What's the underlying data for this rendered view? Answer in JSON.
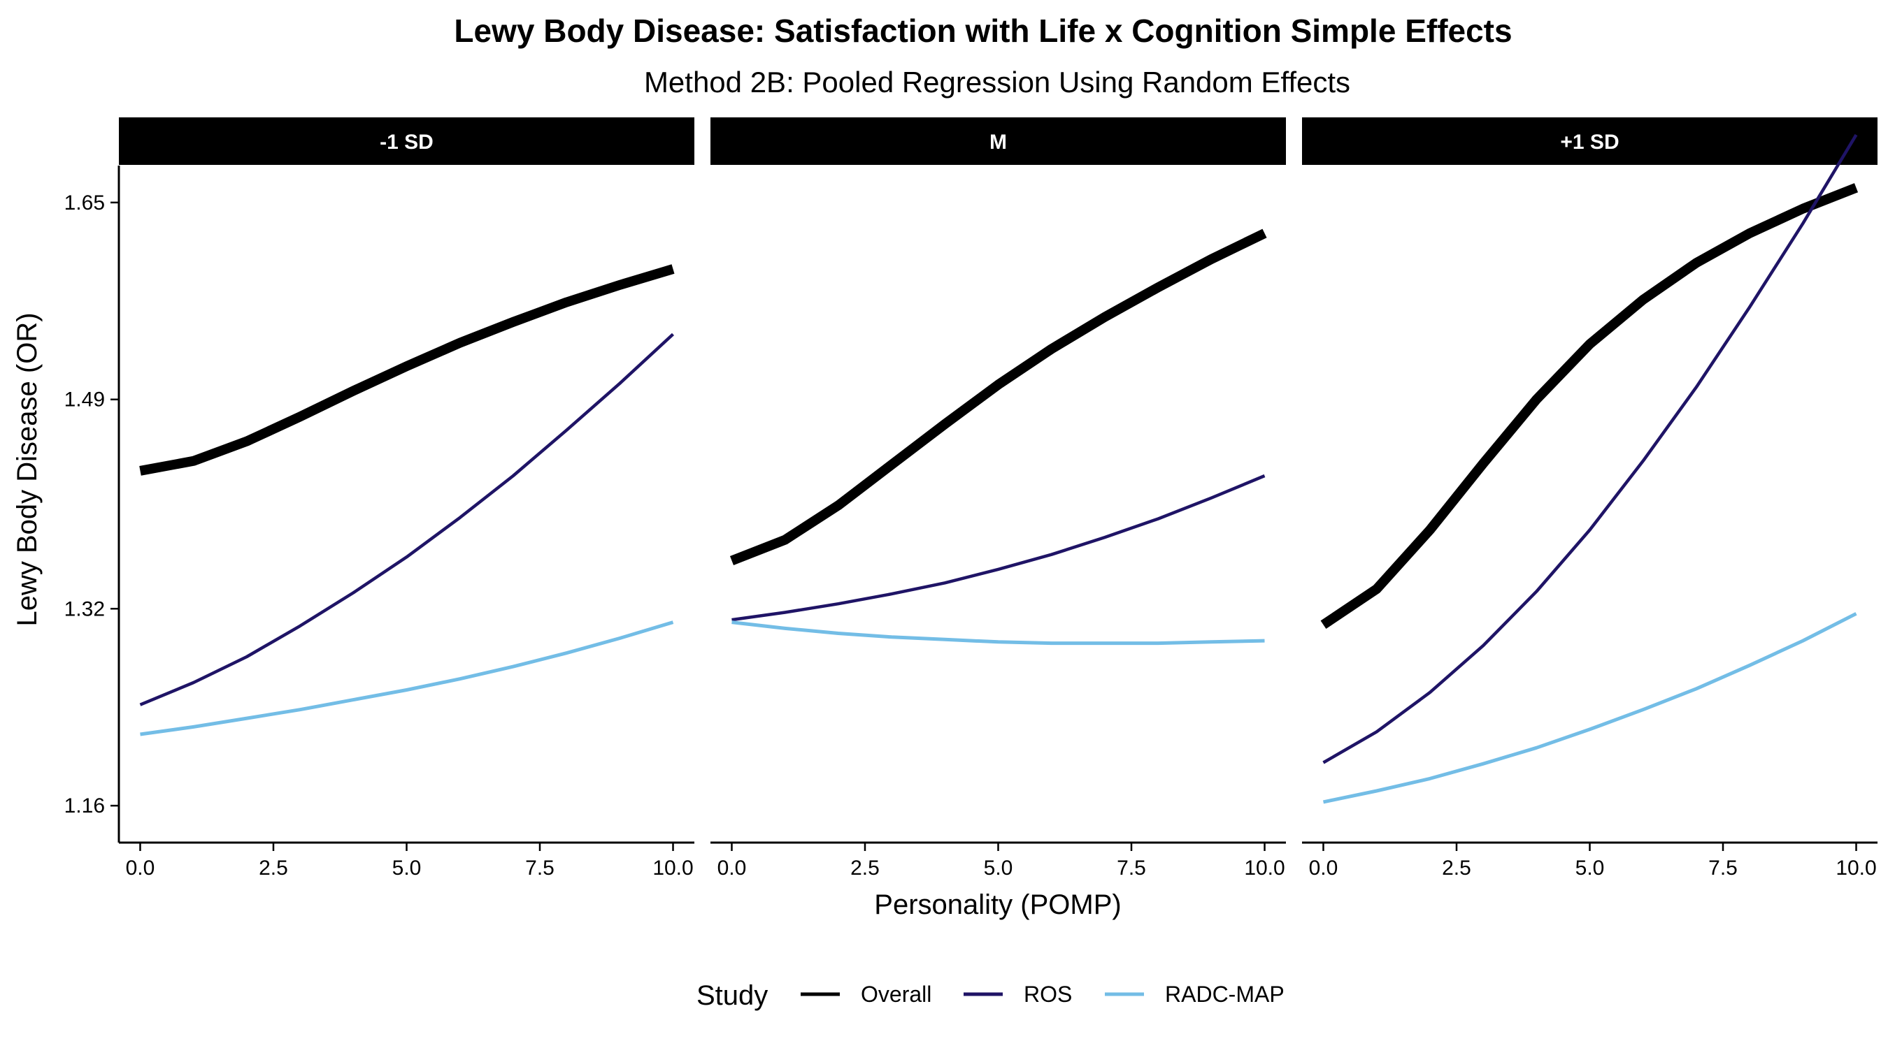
{
  "chart_data": {
    "type": "line",
    "title": "Lewy Body Disease: Satisfaction with Life x Cognition Simple Effects",
    "subtitle": "Method 2B: Pooled Regression Using Random Effects",
    "xlabel": "Personality (POMP)",
    "ylabel": "Lewy Body Disease (OR)",
    "xlim": [
      -0.4,
      10.4
    ],
    "ylim": [
      1.13,
      1.68
    ],
    "x_ticks": [
      0,
      2.5,
      5,
      7.5,
      10
    ],
    "x_tick_labels": [
      "0.0",
      "2.5",
      "5.0",
      "7.5",
      "10.0"
    ],
    "y_ticks": [
      1.16,
      1.32,
      1.49,
      1.65
    ],
    "y_tick_labels": [
      "1.16",
      "1.32",
      "1.49",
      "1.65"
    ],
    "grid": false,
    "legend": {
      "title": "Study",
      "position": "bottom",
      "entries": [
        {
          "label": "Overall",
          "color": "#000000"
        },
        {
          "label": "ROS",
          "color": "#1f1466"
        },
        {
          "label": "RADC-MAP",
          "color": "#73bde6"
        }
      ]
    },
    "panels": [
      {
        "label": "-1 SD",
        "series": [
          {
            "name": "Overall",
            "color": "#000000",
            "x": [
              0,
              1,
              2,
              3,
              4,
              5,
              6,
              7,
              8,
              9,
              10
            ],
            "y": [
              1.432,
              1.44,
              1.456,
              1.476,
              1.497,
              1.517,
              1.536,
              1.553,
              1.569,
              1.583,
              1.596
            ]
          },
          {
            "name": "ROS",
            "color": "#1f1466",
            "x": [
              0,
              1,
              2,
              3,
              4,
              5,
              6,
              7,
              8,
              9,
              10
            ],
            "y": [
              1.242,
              1.26,
              1.281,
              1.306,
              1.333,
              1.362,
              1.394,
              1.428,
              1.465,
              1.503,
              1.543
            ]
          },
          {
            "name": "RADC-MAP",
            "color": "#73bde6",
            "x": [
              0,
              1,
              2,
              3,
              4,
              5,
              6,
              7,
              8,
              9,
              10
            ],
            "y": [
              1.218,
              1.224,
              1.231,
              1.238,
              1.246,
              1.254,
              1.263,
              1.273,
              1.284,
              1.296,
              1.309
            ]
          }
        ]
      },
      {
        "label": "M",
        "series": [
          {
            "name": "Overall",
            "color": "#000000",
            "x": [
              0,
              1,
              2,
              3,
              4,
              5,
              6,
              7,
              8,
              9,
              10
            ],
            "y": [
              1.359,
              1.376,
              1.404,
              1.437,
              1.47,
              1.502,
              1.531,
              1.557,
              1.581,
              1.604,
              1.625
            ]
          },
          {
            "name": "ROS",
            "color": "#1f1466",
            "x": [
              0,
              1,
              2,
              3,
              4,
              5,
              6,
              7,
              8,
              9,
              10
            ],
            "y": [
              1.311,
              1.317,
              1.324,
              1.332,
              1.341,
              1.352,
              1.364,
              1.378,
              1.393,
              1.41,
              1.428
            ]
          },
          {
            "name": "RADC-MAP",
            "color": "#73bde6",
            "x": [
              0,
              1,
              2,
              3,
              4,
              5,
              6,
              7,
              8,
              9,
              10
            ],
            "y": [
              1.309,
              1.304,
              1.3,
              1.297,
              1.295,
              1.293,
              1.292,
              1.292,
              1.292,
              1.293,
              1.294
            ]
          }
        ]
      },
      {
        "label": "+1 SD",
        "series": [
          {
            "name": "Overall",
            "color": "#000000",
            "x": [
              0,
              1,
              2,
              3,
              4,
              5,
              6,
              7,
              8,
              9,
              10
            ],
            "y": [
              1.307,
              1.336,
              1.384,
              1.438,
              1.49,
              1.535,
              1.571,
              1.601,
              1.625,
              1.645,
              1.662
            ]
          },
          {
            "name": "ROS",
            "color": "#1f1466",
            "x": [
              0,
              1,
              2,
              3,
              4,
              5,
              6,
              7,
              8,
              9,
              10
            ],
            "y": [
              1.195,
              1.22,
              1.252,
              1.29,
              1.334,
              1.384,
              1.44,
              1.5,
              1.565,
              1.633,
              1.705
            ]
          },
          {
            "name": "RADC-MAP",
            "color": "#73bde6",
            "x": [
              0,
              1,
              2,
              3,
              4,
              5,
              6,
              7,
              8,
              9,
              10
            ],
            "y": [
              1.163,
              1.172,
              1.182,
              1.194,
              1.207,
              1.222,
              1.238,
              1.255,
              1.274,
              1.294,
              1.316
            ]
          }
        ]
      }
    ]
  }
}
